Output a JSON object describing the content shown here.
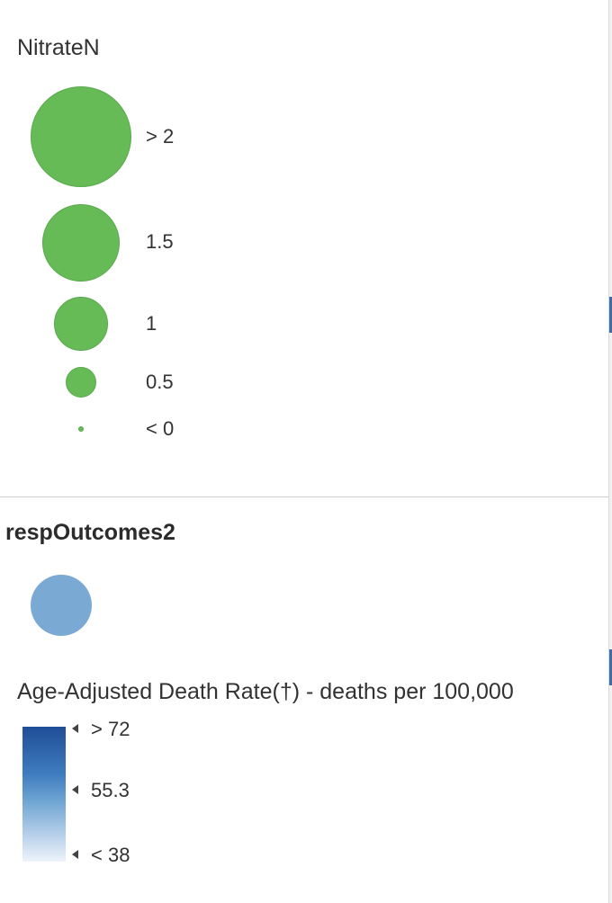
{
  "nitrate": {
    "title": "NitrateN",
    "classes": [
      {
        "label": "> 2",
        "color": "#66bb57"
      },
      {
        "label": "1.5",
        "color": "#66bb57"
      },
      {
        "label": "1",
        "color": "#66bb57"
      },
      {
        "label": "0.5",
        "color": "#66bb57"
      },
      {
        "label": "< 0",
        "color": "#66bb57"
      }
    ]
  },
  "resp": {
    "layer_title": "respOutcomes2",
    "symbol_color": "#7aaad4",
    "field_title": "Age-Adjusted Death Rate(†) - deaths per 100,000",
    "ramp": {
      "top_color": "#1f4e97",
      "bottom_color": "#eef3fb",
      "labels": [
        "> 72",
        "55.3",
        "< 38"
      ]
    }
  }
}
